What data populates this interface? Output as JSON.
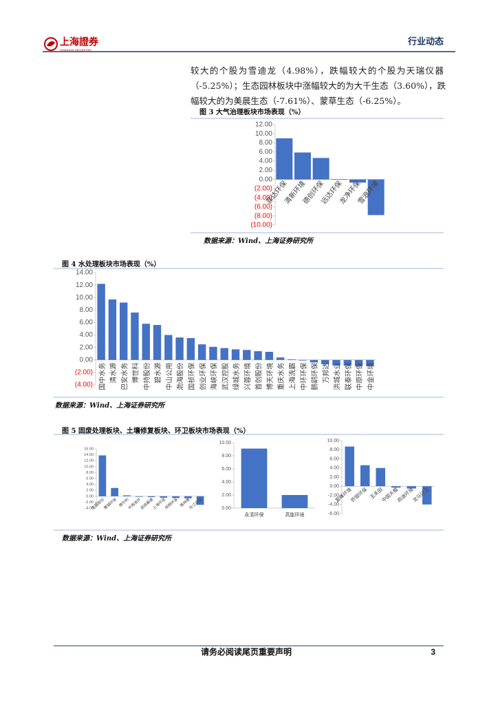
{
  "header": {
    "logo": "上海證券",
    "logo_sub": "SHANGHAI SECURITIES",
    "section": "行业动态"
  },
  "body": {
    "lines": [
      "较大的个股为雪迪龙（4.98%），跌幅较大的个股为天瑞仪器",
      "（-5.25%）；生态园林板块中涨幅较大的为大千生态（3.60%），跌",
      "幅较大的为美晨生态（-7.61%）、蒙草生态（-6.25%）。"
    ]
  },
  "figures": [
    {
      "title": "图 3 大气治理板块市场表现（%）",
      "chart": {
        "type": "bar",
        "color": "#4472c4",
        "negative_label_color": "#ff0000",
        "categories": [
          "菲达环保",
          "清新环境",
          "德创环保",
          "远达环保",
          "龙净环保",
          "雪浪环境"
        ],
        "values": [
          9.0,
          5.9,
          4.7,
          0.1,
          -0.7,
          -7.8
        ],
        "ylim": [
          -10,
          12
        ],
        "yticks": [
          {
            "value": 12,
            "label": "12.00"
          },
          {
            "value": 10,
            "label": "10.00"
          },
          {
            "value": 8,
            "label": "8.00"
          },
          {
            "value": 6,
            "label": "6.00"
          },
          {
            "value": 4,
            "label": "4.00"
          },
          {
            "value": 2,
            "label": "2.00"
          },
          {
            "value": 0,
            "label": "0.00"
          },
          {
            "value": -2,
            "label": "(2.00)"
          },
          {
            "value": -4,
            "label": "(4.00)"
          },
          {
            "value": -6,
            "label": "(6.00)"
          },
          {
            "value": -8,
            "label": "(8.00)"
          },
          {
            "value": -10,
            "label": "(10.00)"
          }
        ]
      },
      "source": "数据来源：Wind、上海证券研究所"
    },
    {
      "title": "图 4 水处理板块市场表现（%）",
      "chart": {
        "type": "bar",
        "color": "#4472c4",
        "negative_label_color": "#ff0000",
        "categories": [
          "国中水务",
          "清水源",
          "巴安水务",
          "博世科",
          "中持股份",
          "碧水源",
          "中山公用",
          "渤海股份",
          "国祯环保",
          "创业环保",
          "海峡环保",
          "武汉控股",
          "绿城水务",
          "兴蓉环境",
          "首创股份",
          "博天环境",
          "重庆水务",
          "上海洗霸",
          "中环环保",
          "鹏鹞环保",
          "万邦达",
          "洪城水业",
          "联泰环保",
          "中原环保",
          "中金环境"
        ],
        "values": [
          12.2,
          9.7,
          9.2,
          7.6,
          5.8,
          5.6,
          4.0,
          3.6,
          3.5,
          2.5,
          2.1,
          1.9,
          1.7,
          1.6,
          1.4,
          1.3,
          0.4,
          0.1,
          -0.1,
          -0.4,
          -0.7,
          -0.9,
          -0.9,
          -1.0,
          -1.0
        ],
        "ylim": [
          -4,
          14
        ],
        "yticks": [
          {
            "value": 14,
            "label": "14.00"
          },
          {
            "value": 12,
            "label": "12.00"
          },
          {
            "value": 10,
            "label": "10.00"
          },
          {
            "value": 8,
            "label": "8.00"
          },
          {
            "value": 6,
            "label": "6.00"
          },
          {
            "value": 4,
            "label": "4.00"
          },
          {
            "value": 2,
            "label": "2.00"
          },
          {
            "value": 0,
            "label": "0.00"
          },
          {
            "value": -2,
            "label": "(2.00)"
          },
          {
            "value": -4,
            "label": "(4.00)"
          }
        ]
      },
      "source": "数据来源：Wind、上海证券研究所"
    },
    {
      "title": "图 5 固废处理板块、土壤修复板块、环卫板块市场表现（%）",
      "charts": [
        {
          "type": "bar",
          "color": "#4472c4",
          "categories": [
            "金圆股份",
            "惠城环保",
            "维尔利",
            "中再资环",
            "启迪桑德",
            "上海环境",
            "伟明环保",
            "格林美",
            "东江环保"
          ],
          "values": [
            13.8,
            2.8,
            0.3,
            -0.2,
            -0.3,
            -0.5,
            -0.6,
            -0.7,
            -2.9
          ],
          "ylim": [
            -4,
            16
          ],
          "yticks": [
            {
              "value": 16,
              "label": "16.00"
            },
            {
              "value": 14,
              "label": "14.00"
            },
            {
              "value": 12,
              "label": "12.00"
            },
            {
              "value": 10,
              "label": "10.00"
            },
            {
              "value": 8,
              "label": "8.00"
            },
            {
              "value": 6,
              "label": "6.00"
            },
            {
              "value": 4,
              "label": "4.00"
            },
            {
              "value": 2,
              "label": "2.00"
            },
            {
              "value": 0,
              "label": "0.00"
            },
            {
              "value": -2,
              "label": "-2.00"
            },
            {
              "value": -4,
              "label": "-4.00"
            }
          ]
        },
        {
          "type": "bar",
          "color": "#4472c4",
          "categories": [
            "永清环保",
            "高能环境"
          ],
          "values": [
            9.1,
            2.0
          ],
          "ylim": [
            0,
            10
          ],
          "yticks": [
            {
              "value": 10,
              "label": "10.00"
            },
            {
              "value": 8,
              "label": "8.00"
            },
            {
              "value": 6,
              "label": "6.00"
            },
            {
              "value": 4,
              "label": "4.00"
            },
            {
              "value": 2,
              "label": "2.00"
            },
            {
              "value": 0,
              "label": "0.00"
            }
          ]
        },
        {
          "type": "bar",
          "color": "#4472c4",
          "categories": [
            "盈峰环境",
            "侨银环保",
            "玉禾田",
            "中国天楹",
            "启迪环境",
            "龙马环卫"
          ],
          "values": [
            8.7,
            4.6,
            4.0,
            -0.3,
            -0.5,
            -4.0
          ],
          "ylim": [
            -6,
            10
          ],
          "yticks": [
            {
              "value": 10,
              "label": "10.00"
            },
            {
              "value": 8,
              "label": "8.00"
            },
            {
              "value": 6,
              "label": "6.00"
            },
            {
              "value": 4,
              "label": "4.00"
            },
            {
              "value": 2,
              "label": "2.00"
            },
            {
              "value": 0,
              "label": "0.00"
            },
            {
              "value": -2,
              "label": "-2.00"
            },
            {
              "value": -4,
              "label": "-4.00"
            },
            {
              "value": -6,
              "label": "-6.00"
            }
          ]
        }
      ],
      "source": "数据来源：Wind、上海证券研究所"
    }
  ],
  "footer": {
    "notice": "请务必阅读尾页重要声明",
    "page": "3"
  }
}
